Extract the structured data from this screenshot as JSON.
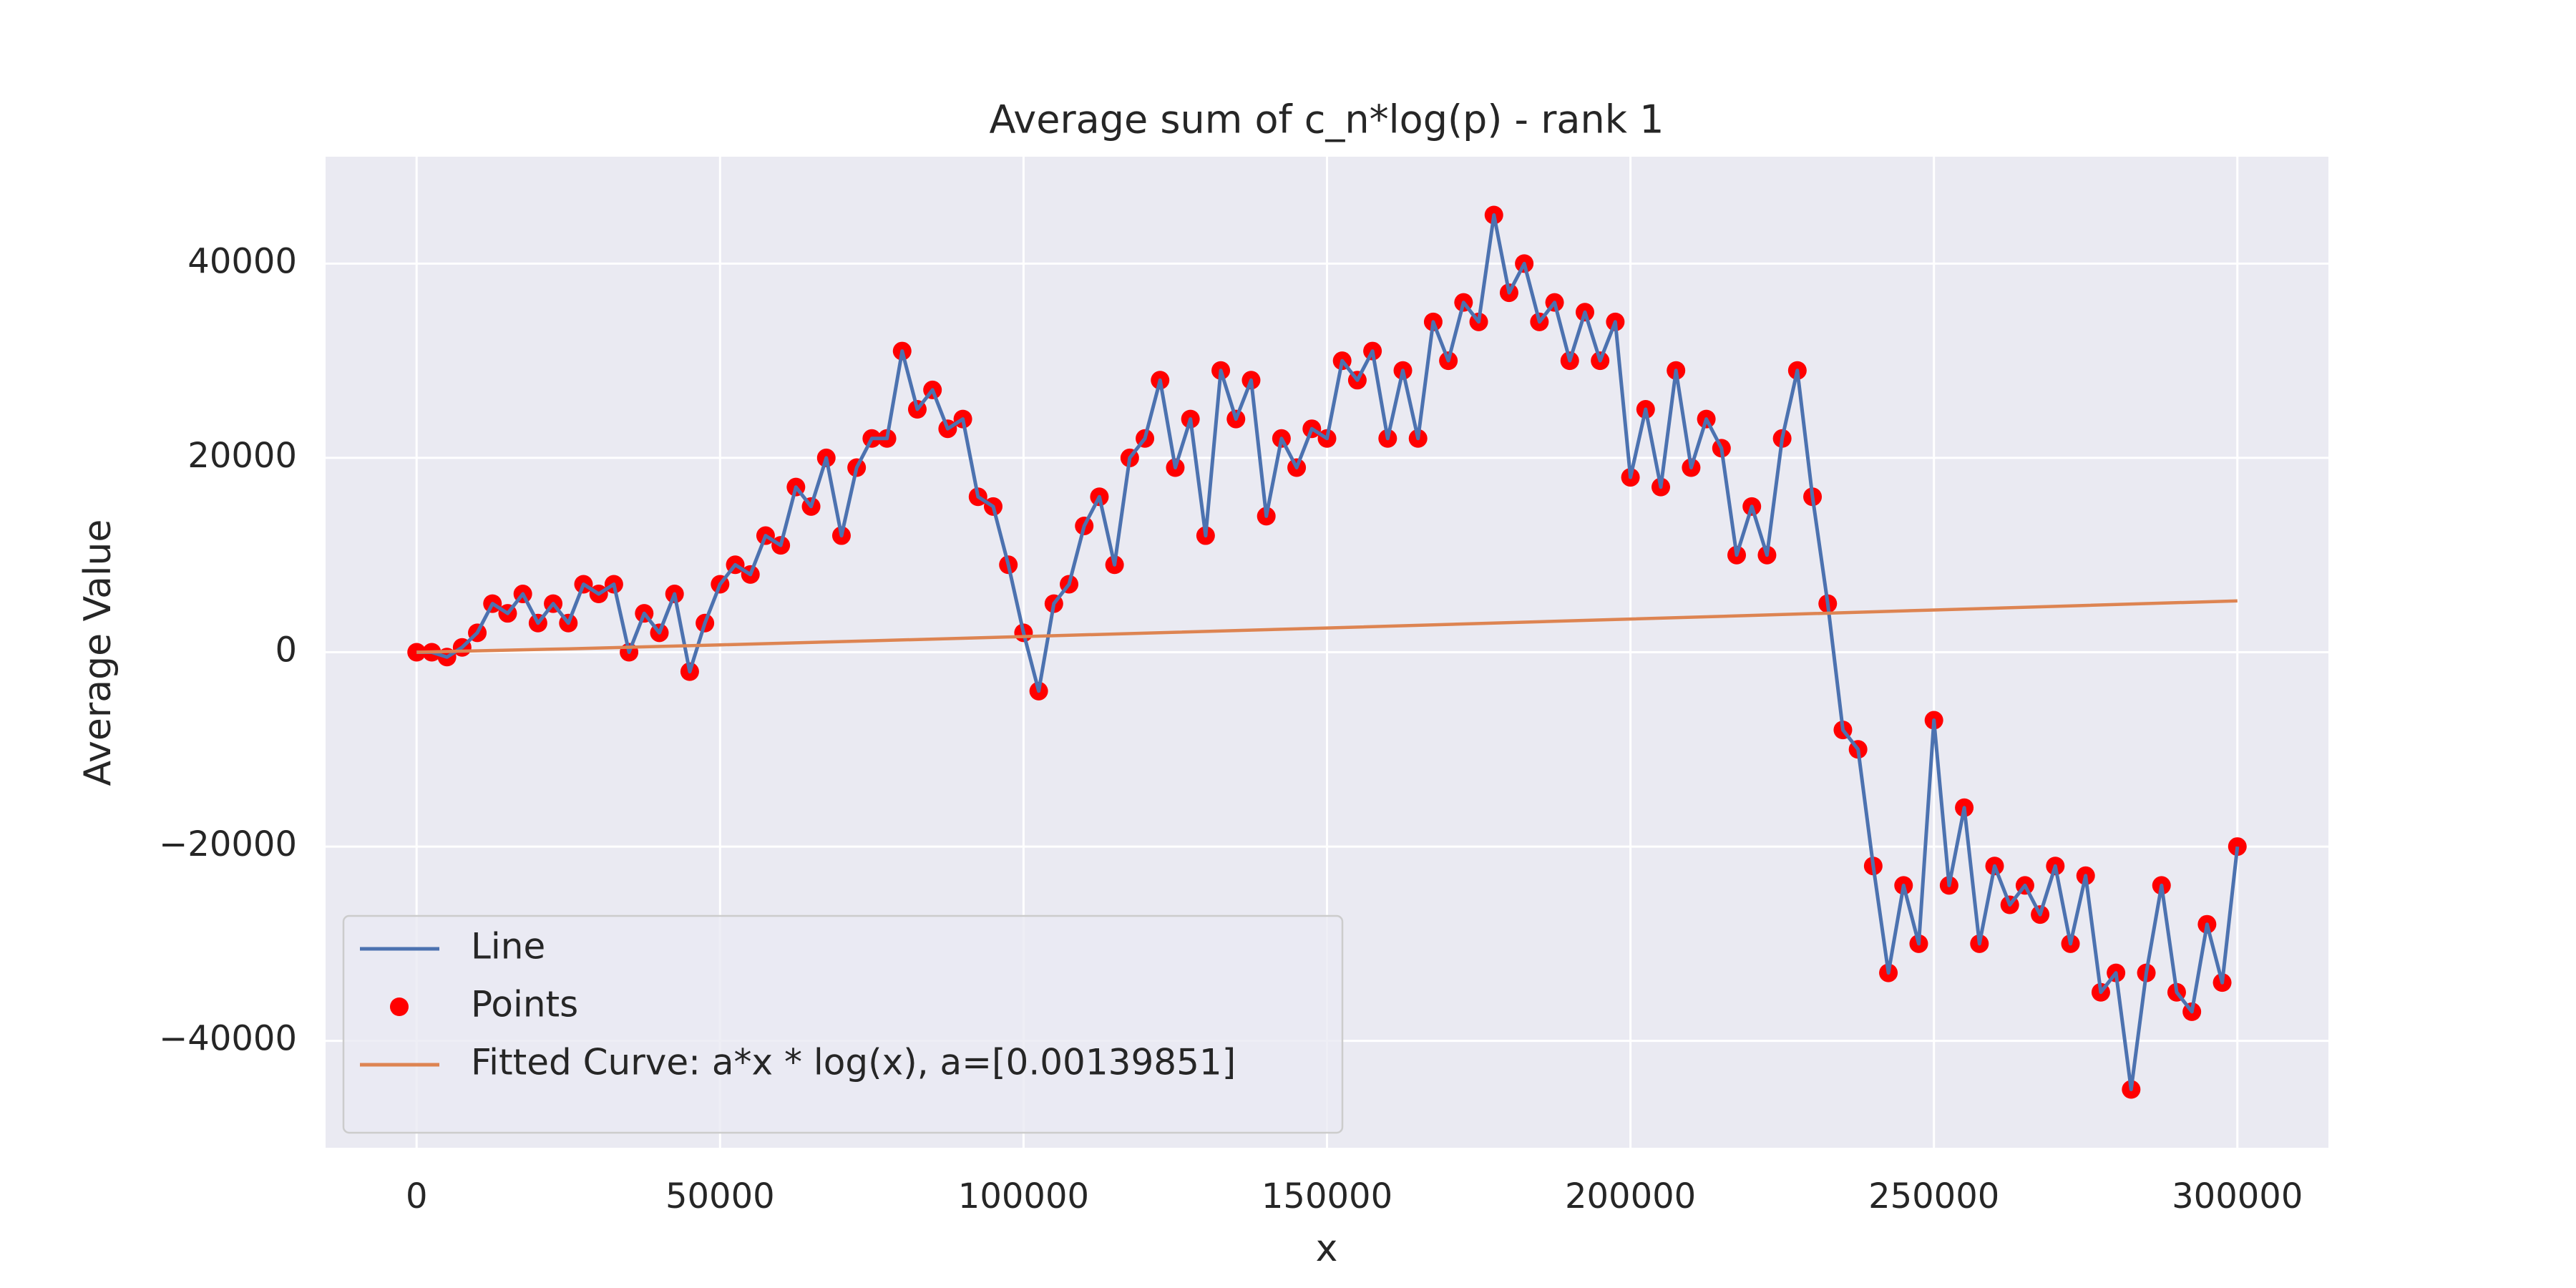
{
  "chart_data": {
    "type": "line",
    "title": "Average sum of c_n*log(p) - rank 1",
    "x_label": "x",
    "y_label": "Average Value",
    "xlim": [
      -15000,
      315000
    ],
    "ylim": [
      -51000,
      51000
    ],
    "xticks": [
      0,
      50000,
      100000,
      150000,
      200000,
      250000,
      300000
    ],
    "yticks": [
      {
        "value": -40000,
        "label": "−40000"
      },
      {
        "value": -20000,
        "label": "−20000"
      },
      0,
      20000,
      40000
    ],
    "grid": true,
    "legend": "lower left",
    "x": [
      0,
      2500,
      5000,
      7500,
      10000,
      12500,
      15000,
      17500,
      20000,
      22500,
      25000,
      27500,
      30000,
      32500,
      35000,
      37500,
      40000,
      42500,
      45000,
      47500,
      50000,
      52500,
      55000,
      57500,
      60000,
      62500,
      65000,
      67500,
      70000,
      72500,
      75000,
      77500,
      80000,
      82500,
      85000,
      87500,
      90000,
      92500,
      95000,
      97500,
      100000,
      102500,
      105000,
      107500,
      110000,
      112500,
      115000,
      117500,
      120000,
      122500,
      125000,
      127500,
      130000,
      132500,
      135000,
      137500,
      140000,
      142500,
      145000,
      147500,
      150000,
      152500,
      155000,
      157500,
      160000,
      162500,
      165000,
      167500,
      170000,
      172500,
      175000,
      177500,
      180000,
      182500,
      185000,
      187500,
      190000,
      192500,
      195000,
      197500,
      200000,
      202500,
      205000,
      207500,
      210000,
      212500,
      215000,
      217500,
      220000,
      222500,
      225000,
      227500,
      230000,
      232500,
      235000,
      237500,
      240000,
      242500,
      245000,
      247500,
      250000,
      252500,
      255000,
      257500,
      260000,
      262500,
      265000,
      267500,
      270000,
      272500,
      275000,
      277500,
      280000,
      282500,
      285000,
      287500,
      290000,
      292500,
      295000,
      297500,
      300000
    ],
    "series": [
      {
        "name": "Line",
        "color": "#4c72b0",
        "mark": "line",
        "values": [
          0,
          0,
          -500,
          500,
          2000,
          5000,
          4000,
          6000,
          3000,
          5000,
          3000,
          7000,
          6000,
          7000,
          0,
          4000,
          2000,
          6000,
          -2000,
          3000,
          7000,
          9000,
          8000,
          12000,
          11000,
          17000,
          15000,
          20000,
          12000,
          19000,
          22000,
          22000,
          31000,
          25000,
          27000,
          23000,
          24000,
          16000,
          15000,
          9000,
          2000,
          -4000,
          5000,
          7000,
          13000,
          16000,
          9000,
          20000,
          22000,
          28000,
          19000,
          24000,
          12000,
          29000,
          24000,
          28000,
          14000,
          22000,
          19000,
          23000,
          22000,
          30000,
          28000,
          31000,
          22000,
          29000,
          22000,
          34000,
          30000,
          36000,
          34000,
          45000,
          37000,
          40000,
          34000,
          36000,
          30000,
          35000,
          30000,
          34000,
          18000,
          25000,
          17000,
          29000,
          19000,
          24000,
          21000,
          10000,
          15000,
          10000,
          22000,
          29000,
          16000,
          5000,
          -8000,
          -10000,
          -22000,
          -33000,
          -24000,
          -30000,
          -7000,
          -24000,
          -16000,
          -30000,
          -22000,
          -26000,
          -24000,
          -27000,
          -22000,
          -30000,
          -23000,
          -35000,
          -33000,
          -45000,
          -33000,
          -24000,
          -35000,
          -37000,
          -28000,
          -34000,
          -20000
        ]
      },
      {
        "name": "Points",
        "color": "#ff0000",
        "mark": "points",
        "values": [
          0,
          0,
          -500,
          500,
          2000,
          5000,
          4000,
          6000,
          3000,
          5000,
          3000,
          7000,
          6000,
          7000,
          0,
          4000,
          2000,
          6000,
          -2000,
          3000,
          7000,
          9000,
          8000,
          12000,
          11000,
          17000,
          15000,
          20000,
          12000,
          19000,
          22000,
          22000,
          31000,
          25000,
          27000,
          23000,
          24000,
          16000,
          15000,
          9000,
          2000,
          -4000,
          5000,
          7000,
          13000,
          16000,
          9000,
          20000,
          22000,
          28000,
          19000,
          24000,
          12000,
          29000,
          24000,
          28000,
          14000,
          22000,
          19000,
          23000,
          22000,
          30000,
          28000,
          31000,
          22000,
          29000,
          22000,
          34000,
          30000,
          36000,
          34000,
          45000,
          37000,
          40000,
          34000,
          36000,
          30000,
          35000,
          30000,
          34000,
          18000,
          25000,
          17000,
          29000,
          19000,
          24000,
          21000,
          10000,
          15000,
          10000,
          22000,
          29000,
          16000,
          5000,
          -8000,
          -10000,
          -22000,
          -33000,
          -24000,
          -30000,
          -7000,
          -24000,
          -16000,
          -30000,
          -22000,
          -26000,
          -24000,
          -27000,
          -22000,
          -30000,
          -23000,
          -35000,
          -33000,
          -45000,
          -33000,
          -24000,
          -35000,
          -37000,
          -28000,
          -34000,
          -20000
        ]
      },
      {
        "name": "Fitted Curve: a*x * log(x), a=[0.00139851]",
        "color": "#dd8452",
        "mark": "line",
        "x": [
          1,
          25000,
          50000,
          75000,
          100000,
          125000,
          150000,
          175000,
          200000,
          225000,
          250000,
          275000,
          300000
        ],
        "values": [
          0,
          354.1,
          756.6,
          1177.4,
          1610.1,
          2051.6,
          2500.2,
          2954.6,
          3414.1,
          3877.9,
          4345.6,
          4816.8,
          5291.2
        ]
      }
    ]
  }
}
